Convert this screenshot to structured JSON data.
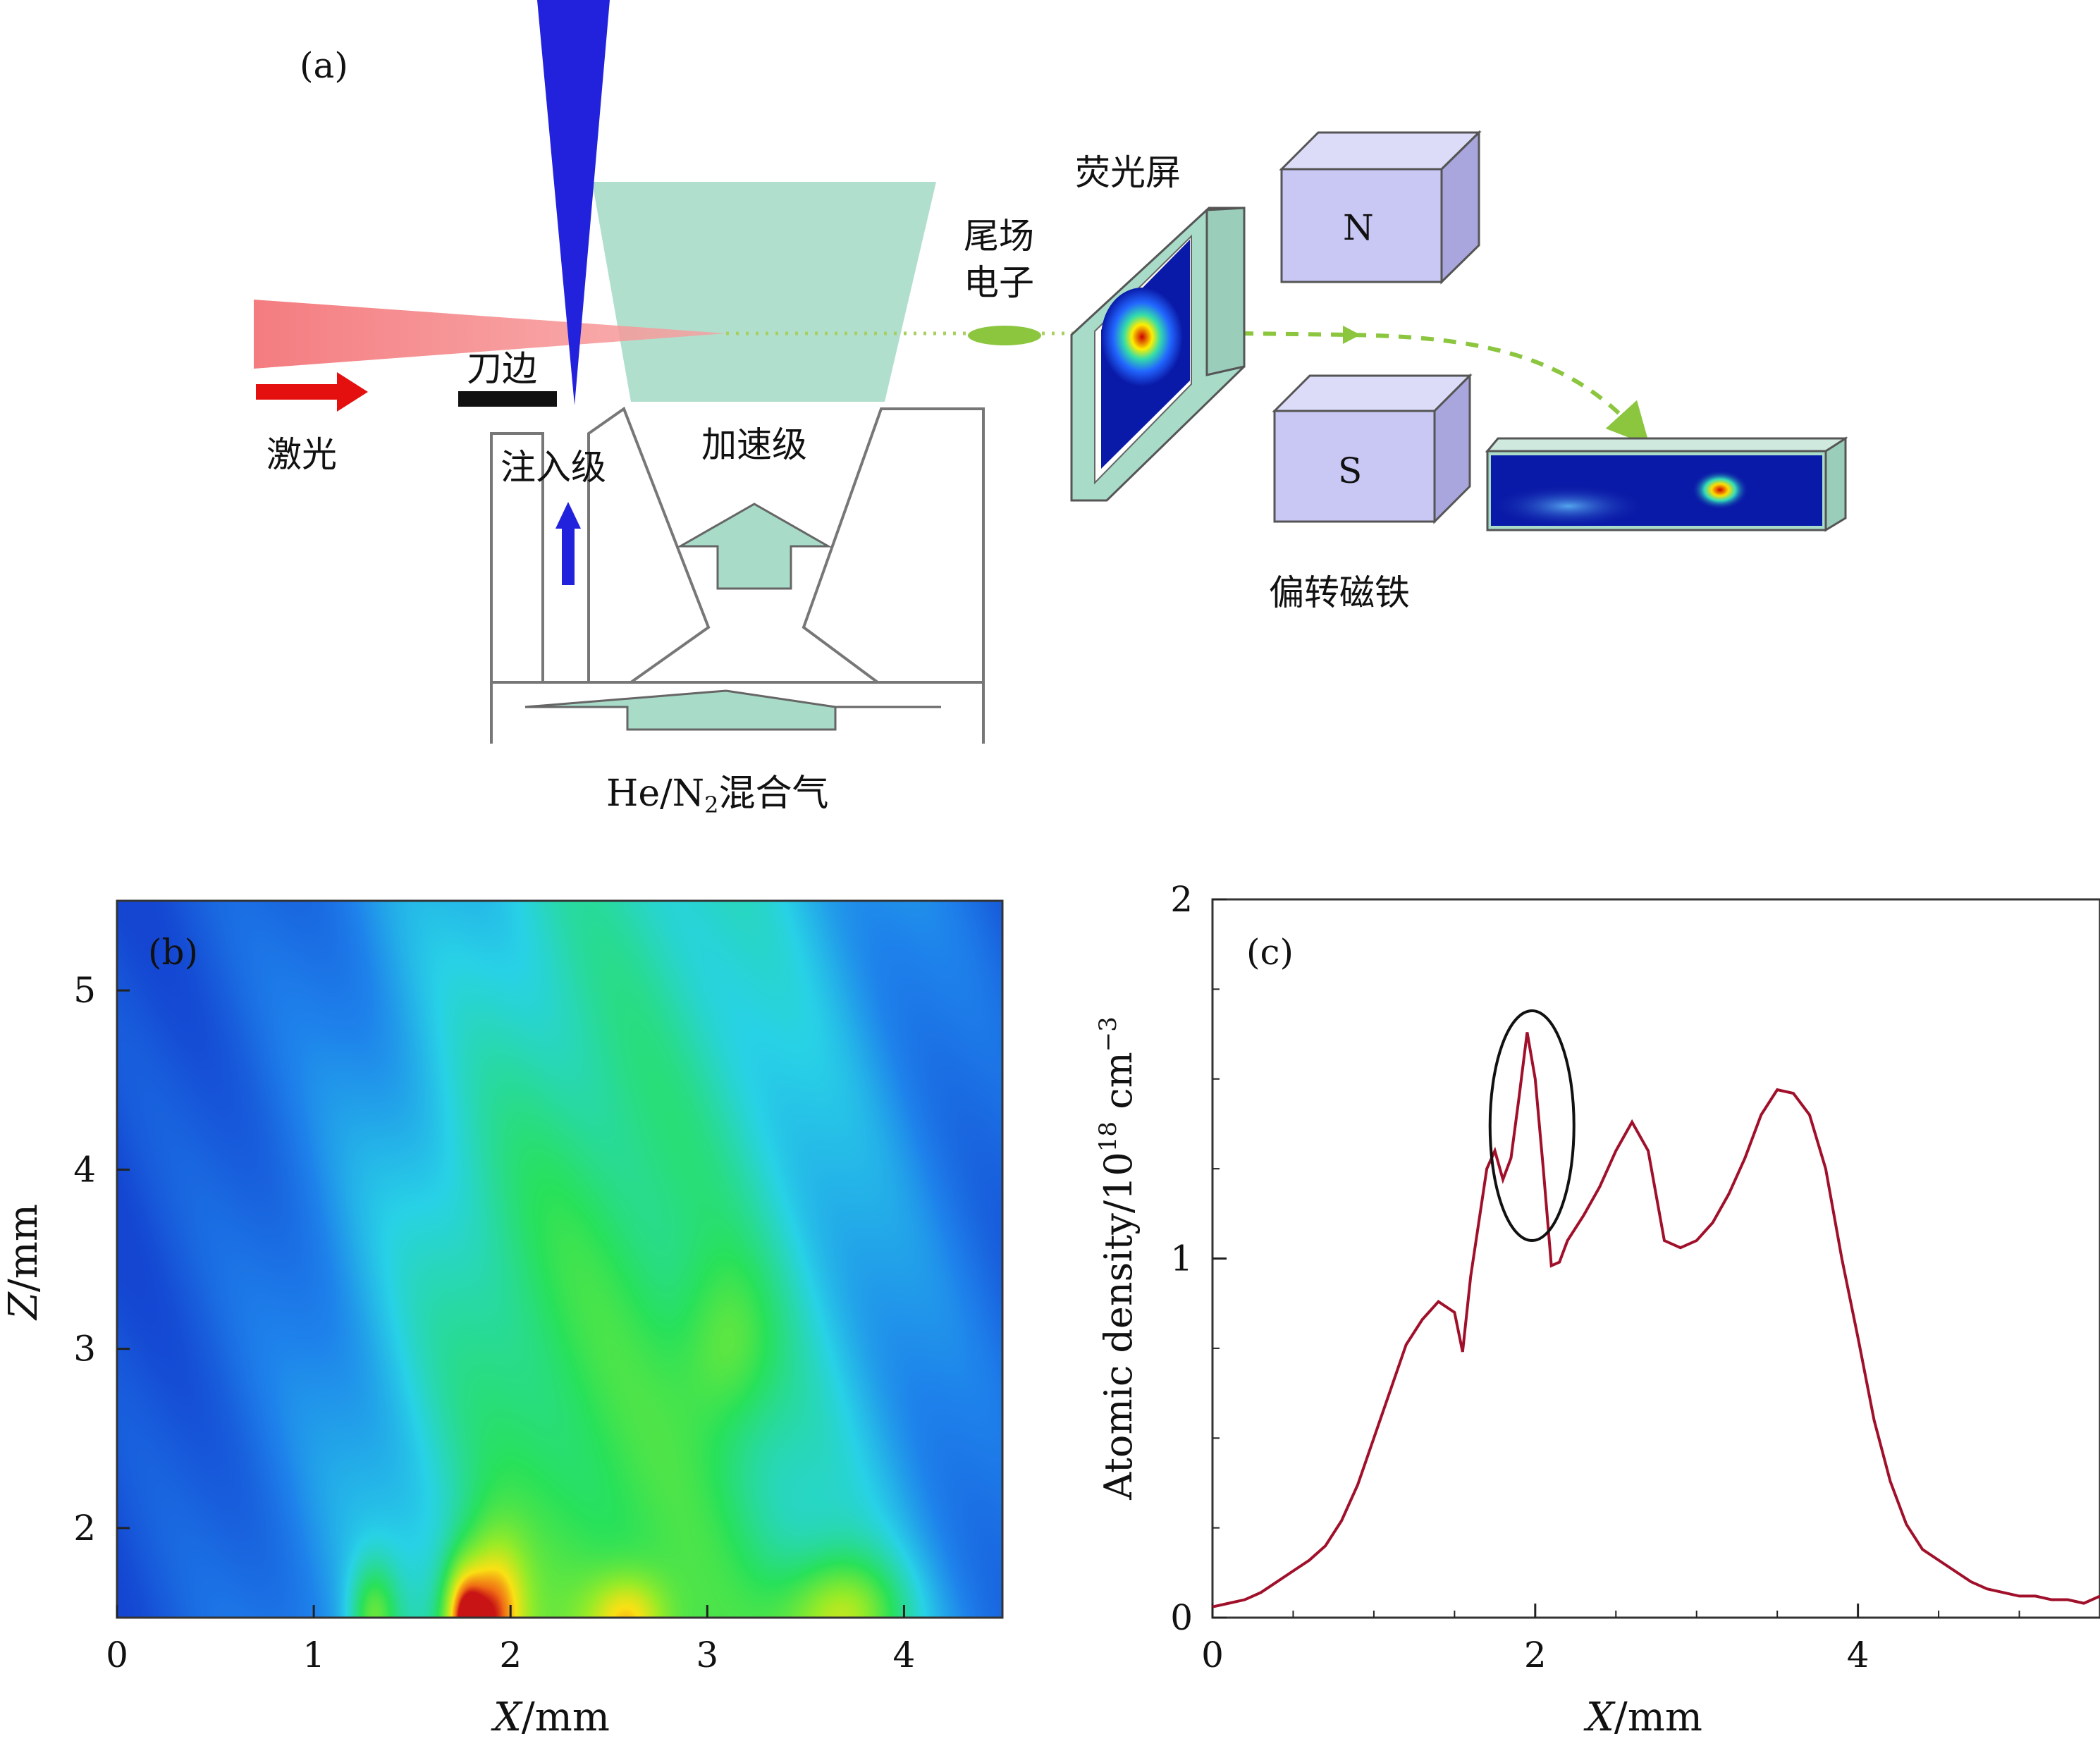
{
  "panel_a": {
    "label": "(a)",
    "laser": "激光",
    "knife_edge": "刀边",
    "injection_stage": "注入级",
    "acceleration_stage": "加速级",
    "wake_electrons_line1": "尾场",
    "wake_electrons_line2": "电子",
    "screen": "荧光屏",
    "magnet_n": "N",
    "magnet_s": "S",
    "deflection_magnet": "偏转磁铁",
    "gas_prefix": "He/N",
    "gas_subscript": "2",
    "gas_suffix": "混合气",
    "colors": {
      "laser": "#f47c80",
      "probe": "#2222dd",
      "gas_cone": "#a8dcc9",
      "magnet": "#c9c8f4",
      "electron": "#8cc63f"
    }
  },
  "panel_b": {
    "label": "(b)",
    "xlabel_var": "X",
    "xlabel_unit": "/mm",
    "ylabel_var": "Z",
    "ylabel_unit": "/mm",
    "xticks": [
      "0",
      "1",
      "2",
      "3",
      "4"
    ],
    "yticks": [
      "2",
      "3",
      "4",
      "5"
    ],
    "xlim": [
      0,
      4.5
    ],
    "ylim": [
      1.5,
      5.5
    ]
  },
  "panel_c": {
    "label": "(c)",
    "xlabel_var": "X",
    "xlabel_unit": "/mm",
    "ylabel_text": "Atomic density/10",
    "ylabel_exp": "18",
    "ylabel_unit": " cm",
    "ylabel_unit_exp": "−3",
    "xticks": [
      "0",
      "2",
      "4"
    ],
    "yticks": [
      "0",
      "1",
      "2"
    ],
    "line_color": "#a0102a"
  },
  "chart_data": {
    "type": "line",
    "title": "",
    "xlabel": "X/mm",
    "ylabel": "Atomic density/10^18 cm^-3",
    "xlim": [
      0,
      5.5
    ],
    "ylim": [
      0,
      2
    ],
    "series": [
      {
        "x": [
          0,
          0.1,
          0.2,
          0.3,
          0.4,
          0.5,
          0.6,
          0.7,
          0.8,
          0.9,
          1.0,
          1.1,
          1.2,
          1.3,
          1.4,
          1.5,
          1.55,
          1.6,
          1.7,
          1.75,
          1.8,
          1.85,
          1.9,
          1.95,
          2.0,
          2.05,
          2.1,
          2.15,
          2.2,
          2.3,
          2.4,
          2.5,
          2.6,
          2.7,
          2.8,
          2.9,
          3.0,
          3.1,
          3.2,
          3.3,
          3.4,
          3.5,
          3.6,
          3.7,
          3.8,
          3.9,
          4.0,
          4.1,
          4.2,
          4.3,
          4.4,
          4.5,
          4.6,
          4.7,
          4.8,
          4.9,
          5.0,
          5.1,
          5.2,
          5.3,
          5.4,
          5.5
        ],
        "y": [
          0.03,
          0.04,
          0.05,
          0.07,
          0.1,
          0.13,
          0.16,
          0.2,
          0.27,
          0.37,
          0.5,
          0.63,
          0.76,
          0.83,
          0.88,
          0.85,
          0.74,
          0.95,
          1.25,
          1.3,
          1.22,
          1.28,
          1.45,
          1.63,
          1.5,
          1.25,
          0.98,
          0.99,
          1.05,
          1.12,
          1.2,
          1.3,
          1.38,
          1.3,
          1.05,
          1.03,
          1.05,
          1.1,
          1.18,
          1.28,
          1.4,
          1.47,
          1.46,
          1.4,
          1.25,
          1.0,
          0.78,
          0.55,
          0.38,
          0.26,
          0.19,
          0.16,
          0.13,
          0.1,
          0.08,
          0.07,
          0.06,
          0.06,
          0.05,
          0.05,
          0.04,
          0.06
        ]
      }
    ],
    "annotations": [
      {
        "type": "ellipse",
        "x": 1.98,
        "y": 1.37,
        "rx": 0.26,
        "ry": 0.32
      }
    ]
  },
  "heatmap_data": {
    "type": "heatmap",
    "sources": [
      {
        "x": 1.9,
        "z": 1.5,
        "amp": 1.0,
        "sx": 0.18,
        "sz": 0.45
      },
      {
        "x": 1.75,
        "z": 1.5,
        "amp": 0.75,
        "sx": 0.1,
        "sz": 0.3
      },
      {
        "x": 1.3,
        "z": 1.5,
        "amp": 0.6,
        "sx": 0.12,
        "sz": 0.3
      },
      {
        "x": 2.6,
        "z": 1.5,
        "amp": 0.55,
        "sx": 0.2,
        "sz": 0.25
      },
      {
        "x": 3.7,
        "z": 1.5,
        "amp": 0.85,
        "sx": 0.3,
        "sz": 0.35
      },
      {
        "x": 3.1,
        "z": 3.0,
        "amp": 0.35,
        "sx": 0.25,
        "sz": 0.5
      }
    ]
  }
}
